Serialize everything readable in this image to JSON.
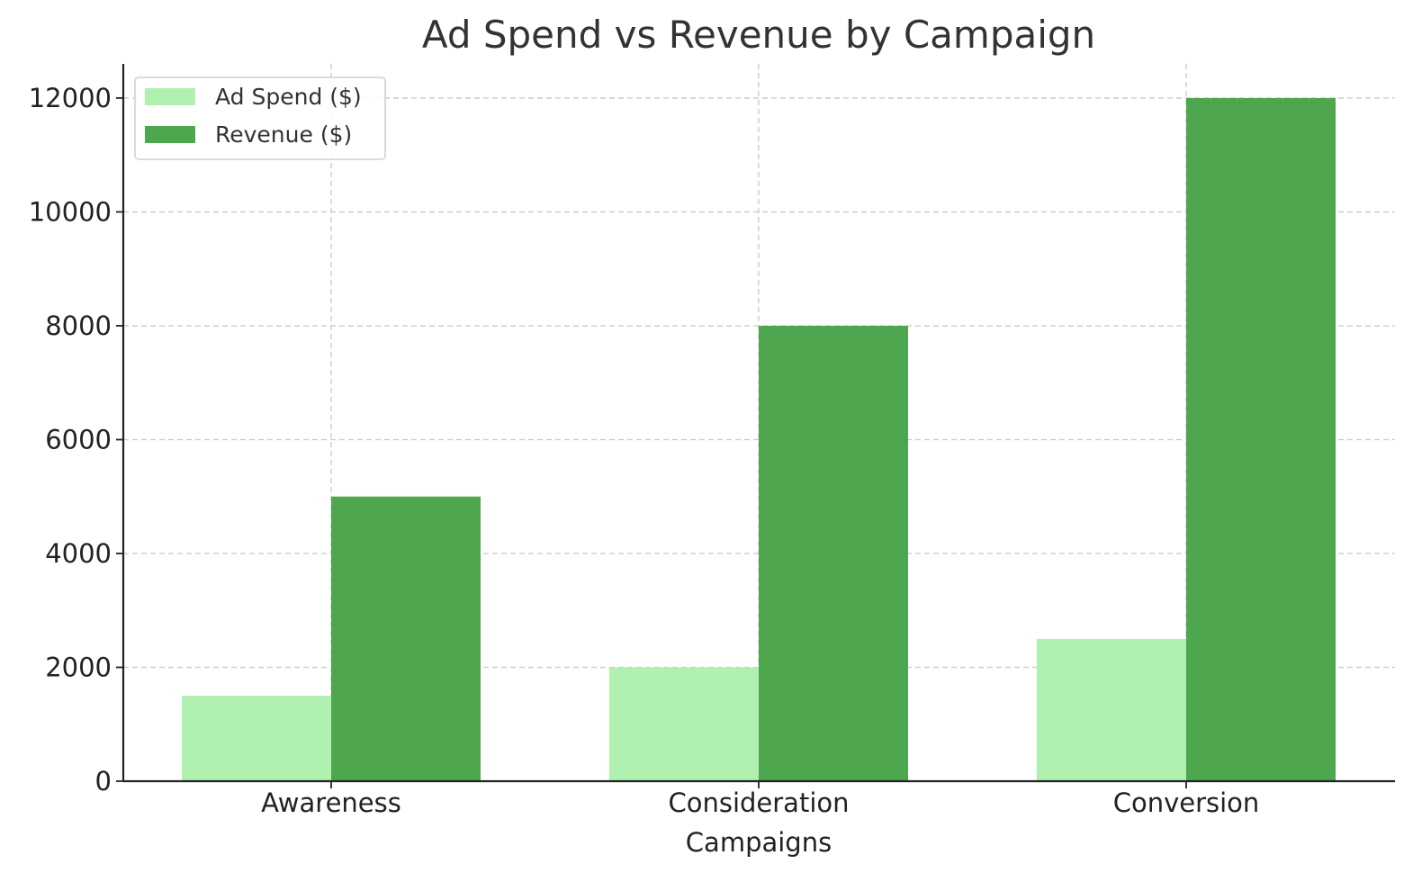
{
  "chart_data": {
    "type": "bar",
    "title": "Ad Spend vs Revenue by Campaign",
    "xlabel": "Campaigns",
    "ylabel": "",
    "categories": [
      "Awareness",
      "Consideration",
      "Conversion"
    ],
    "series": [
      {
        "name": "Ad Spend ($)",
        "color": "#b0f0b0",
        "values": [
          1500,
          2000,
          2500
        ]
      },
      {
        "name": "Revenue ($)",
        "color": "#4ea64e",
        "values": [
          5000,
          8000,
          12000
        ]
      }
    ],
    "ylim": [
      0,
      12600
    ],
    "yticks": [
      0,
      2000,
      4000,
      6000,
      8000,
      10000,
      12000
    ],
    "grid": true,
    "legend_position": "top-left"
  }
}
